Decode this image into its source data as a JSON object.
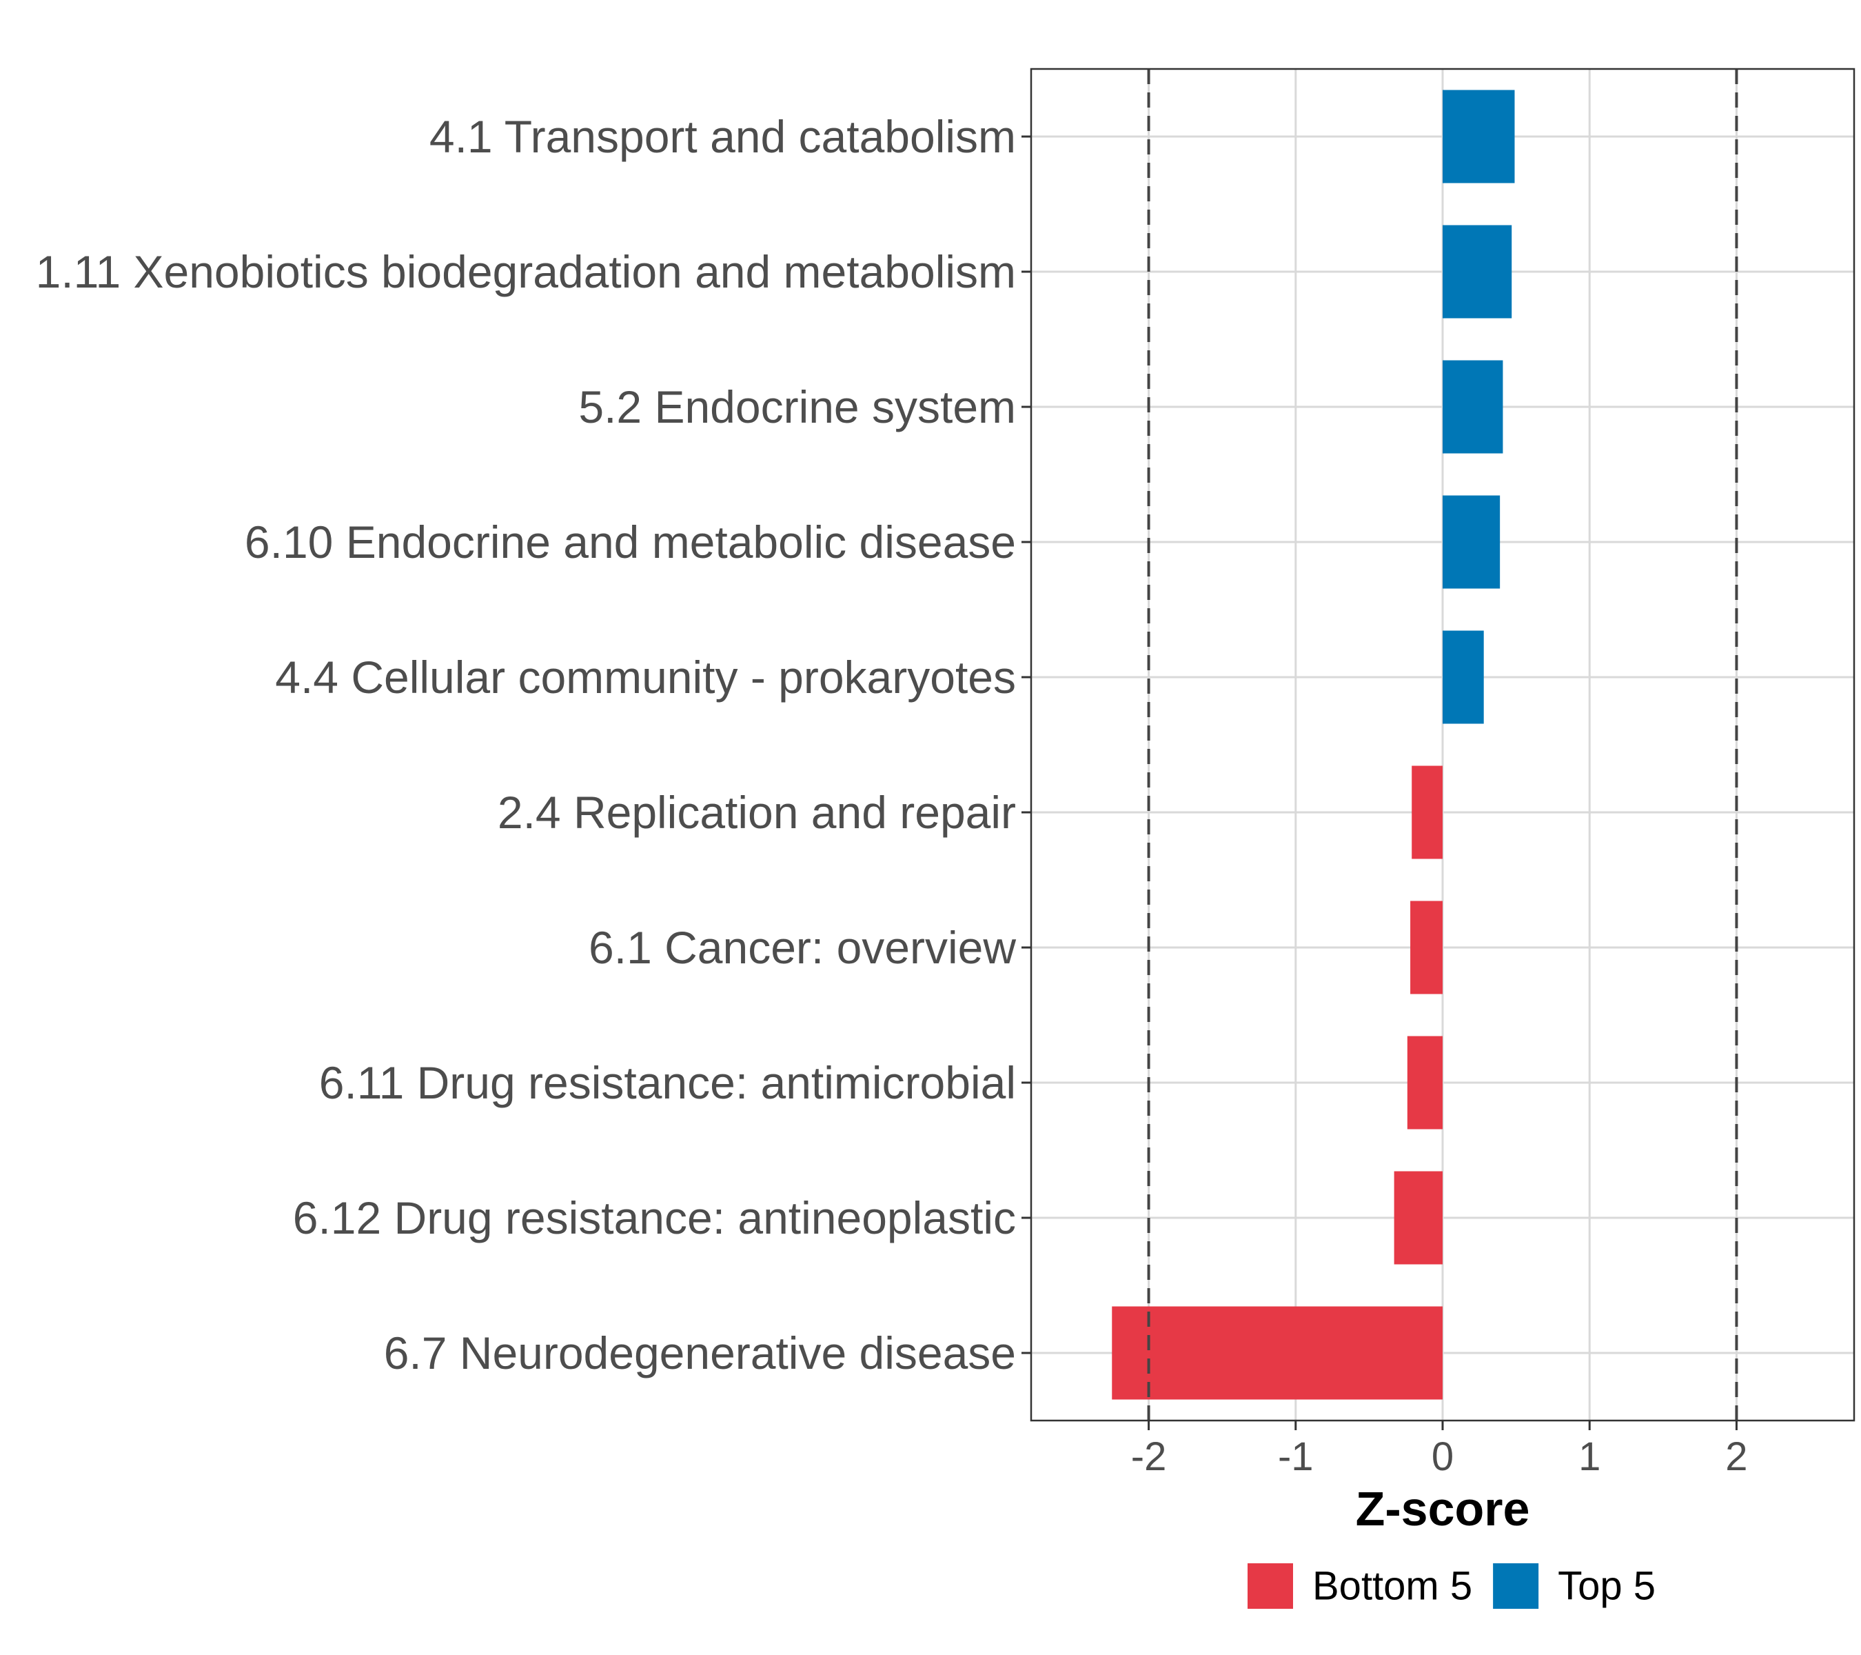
{
  "chart_data": {
    "type": "bar",
    "orientation": "horizontal",
    "xlabel": "Z-score",
    "xlim": [
      -2.8,
      2.8
    ],
    "xticks": [
      -2,
      -1,
      0,
      1,
      2
    ],
    "reference_lines": [
      -2,
      2
    ],
    "grid": true,
    "legend_position": "bottom",
    "categories": [
      "4.1 Transport and catabolism",
      "1.11 Xenobiotics biodegradation and metabolism",
      "5.2 Endocrine system",
      "6.10 Endocrine and metabolic disease",
      "4.4 Cellular community - prokaryotes",
      "2.4 Replication and repair",
      "6.1 Cancer: overview",
      "6.11 Drug resistance: antimicrobial",
      "6.12 Drug resistance: antineoplastic",
      "6.7 Neurodegenerative disease"
    ],
    "values": [
      0.49,
      0.47,
      0.41,
      0.39,
      0.28,
      -0.21,
      -0.22,
      -0.24,
      -0.33,
      -2.25
    ],
    "groups": [
      "Top 5",
      "Top 5",
      "Top 5",
      "Top 5",
      "Top 5",
      "Bottom 5",
      "Bottom 5",
      "Bottom 5",
      "Bottom 5",
      "Bottom 5"
    ],
    "legend": [
      {
        "label": "Bottom 5",
        "color": "#E63946"
      },
      {
        "label": "Top 5",
        "color": "#0077B6"
      }
    ]
  }
}
